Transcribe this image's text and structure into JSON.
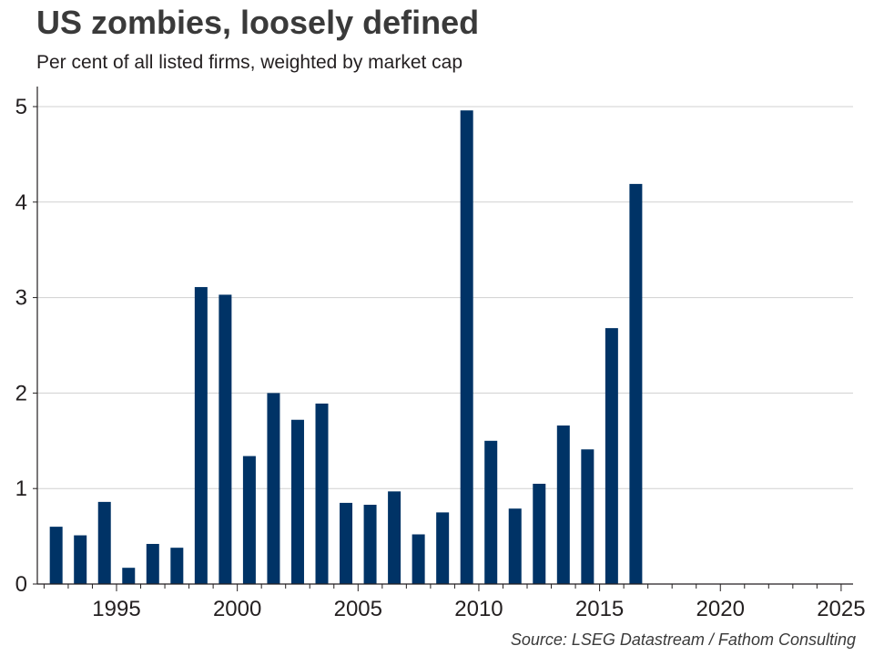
{
  "header": {
    "title": "US zombies, loosely defined",
    "subtitle": "Per cent of all listed firms, weighted by market cap"
  },
  "footer": {
    "source": "Source: LSEG Datastream / Fathom Consulting"
  },
  "colors": {
    "bar": "#003366",
    "grid": "#d0d0d0",
    "axis": "#231f20"
  },
  "chart_data": {
    "type": "bar",
    "title": "US zombies, loosely defined",
    "subtitle": "Per cent of all listed firms, weighted by market cap",
    "xlabel": "",
    "ylabel": "",
    "x": [
      1992.5,
      1993.5,
      1994.5,
      1995.5,
      1996.5,
      1997.5,
      1998.5,
      1999.5,
      2000.5,
      2001.5,
      2002.5,
      2003.5,
      2004.5,
      2005.5,
      2006.5,
      2007.5,
      2008.5,
      2009.5,
      2010.5,
      2011.5,
      2012.5,
      2013.5,
      2014.5,
      2015.5,
      2016.5
    ],
    "values": [
      0.6,
      0.51,
      0.86,
      0.17,
      0.42,
      0.38,
      3.11,
      3.03,
      1.34,
      2.0,
      1.72,
      1.89,
      0.85,
      0.83,
      0.97,
      0.52,
      0.75,
      4.96,
      1.5,
      0.79,
      1.05,
      1.66,
      1.41,
      2.68,
      4.19
    ],
    "xlim": [
      1992,
      2025.5
    ],
    "ylim": [
      0,
      5.2
    ],
    "x_ticks": [
      1995,
      2000,
      2005,
      2010,
      2015,
      2020,
      2025
    ],
    "x_tick_labels": [
      "1995",
      "2000",
      "2005",
      "2010",
      "2015",
      "2020",
      "2025"
    ],
    "y_ticks": [
      0,
      1,
      2,
      3,
      4,
      5
    ],
    "y_tick_labels": [
      "0",
      "1",
      "2",
      "3",
      "4",
      "5"
    ],
    "grid": "horizontal",
    "legend": "none"
  }
}
